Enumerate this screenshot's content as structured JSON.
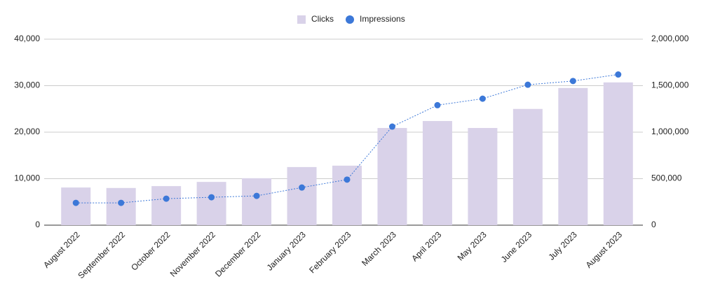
{
  "chart_data": {
    "type": "combo",
    "categories": [
      "August 2022",
      "September 2022",
      "October 2022",
      "November 2022",
      "December 2022",
      "January 2023",
      "February 2023",
      "March 2023",
      "April 2023",
      "May 2023",
      "June 2023",
      "July 2023",
      "August 2023"
    ],
    "series": [
      {
        "name": "Clicks",
        "type": "bar",
        "color": "#d9d2e9",
        "values": [
          8100,
          8000,
          8400,
          9300,
          10100,
          12500,
          12800,
          20900,
          22400,
          20900,
          25000,
          29500,
          30700
        ]
      },
      {
        "name": "Impressions",
        "type": "line",
        "axis": "y2",
        "color": "#3c78d8",
        "values": [
          240000,
          240000,
          285000,
          300000,
          315000,
          405000,
          490000,
          1060000,
          1290000,
          1360000,
          1510000,
          1550000,
          1620000
        ]
      }
    ],
    "ylim": [
      0,
      40000
    ],
    "yticks": [
      0,
      {
        "value": 10000,
        "label": "10,000"
      },
      {
        "value": 20000,
        "label": "20,000"
      },
      {
        "value": 30000,
        "label": "30,000"
      },
      {
        "value": 40000,
        "label": "40,000"
      }
    ],
    "y2lim": [
      0,
      2000000
    ],
    "y2ticks": [
      0,
      {
        "value": 500000,
        "label": "500,000"
      },
      {
        "value": 1000000,
        "label": "1,000,000"
      },
      {
        "value": 1500000,
        "label": "1,500,000"
      },
      {
        "value": 2000000,
        "label": "2,000,000"
      }
    ],
    "grid": true,
    "legend": "top"
  }
}
